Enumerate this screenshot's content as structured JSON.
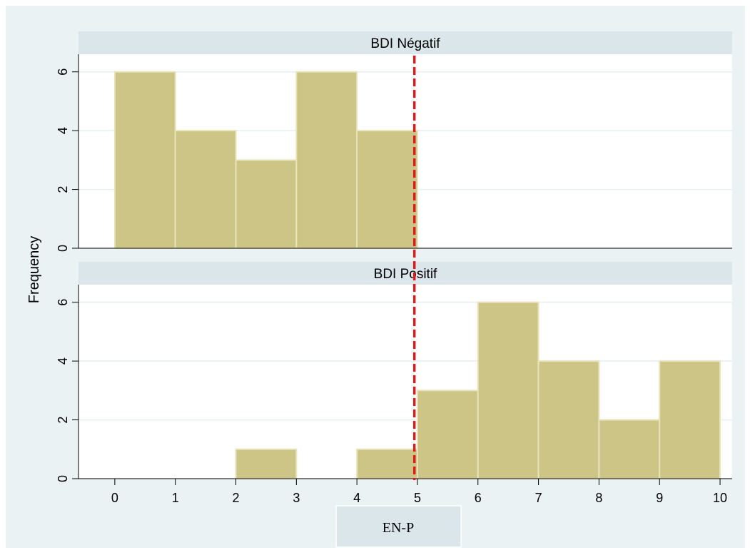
{
  "chart_data": {
    "type": "bar",
    "xlabel": "EN-P",
    "ylabel": "Frequency",
    "xlim": [
      -0.6,
      10.2
    ],
    "xticks": [
      "0",
      "1",
      "2",
      "3",
      "4",
      "5",
      "6",
      "7",
      "8",
      "9",
      "10"
    ],
    "ylim": [
      0,
      6.6
    ],
    "yticks": [
      "0",
      "2",
      "4",
      "6"
    ],
    "bin_width": 1,
    "reference_line": {
      "x": 4.95,
      "style": "dashed",
      "color": "#e31a1c"
    },
    "bar_color": "#ccc586",
    "panels": [
      {
        "title": "BDI Négatif",
        "bins": [
          0,
          1,
          2,
          3,
          4
        ],
        "values": [
          6,
          4,
          3,
          6,
          4
        ]
      },
      {
        "title": "BDI Positif",
        "bins": [
          2,
          4,
          5,
          6,
          7,
          8,
          9
        ],
        "values": [
          1,
          1,
          3,
          6,
          4,
          2,
          4
        ]
      }
    ],
    "grid": true
  }
}
